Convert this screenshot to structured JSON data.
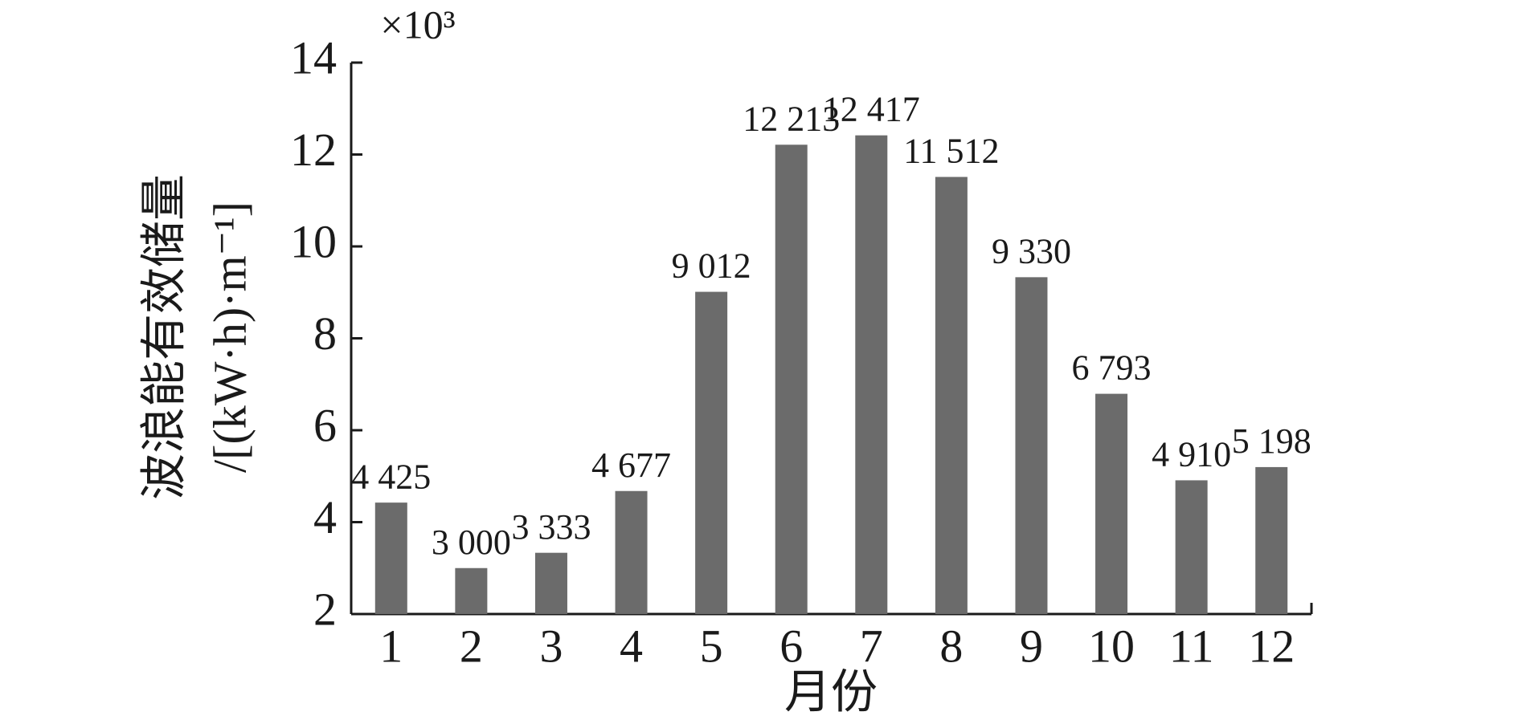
{
  "chart_data": {
    "type": "bar",
    "ylabel_lines": [
      "波浪能有效储量",
      "/[(kW·h)·m⁻¹]"
    ],
    "y_multiplier": "×10³",
    "xlabel": "月份",
    "categories": [
      "1",
      "2",
      "3",
      "4",
      "5",
      "6",
      "7",
      "8",
      "9",
      "10",
      "11",
      "12"
    ],
    "values": [
      4.425,
      3.0,
      3.333,
      4.677,
      9.012,
      12.213,
      12.417,
      11.512,
      9.33,
      6.793,
      4.91,
      5.198
    ],
    "value_labels": [
      "4 425",
      "3 000",
      "3 333",
      "4 677",
      "9 012",
      "12 213",
      "12 417",
      "11 512",
      "9 330",
      "6 793",
      "4 910",
      "5 198"
    ],
    "color": "#6b6b6b",
    "ylim": [
      2,
      14
    ],
    "yticks": [
      2,
      4,
      6,
      8,
      10,
      12,
      14
    ],
    "grid": false
  }
}
